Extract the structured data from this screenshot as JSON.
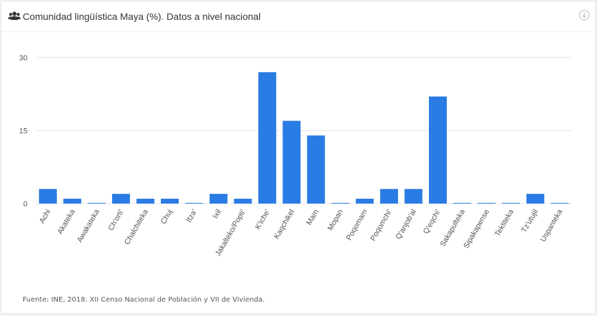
{
  "header": {
    "title": "Comunidad lingüística Maya (%). Datos a nivel nacional",
    "icon": "users-icon",
    "download_icon": "download-icon"
  },
  "footer": {
    "source": "Fuente: INE, 2018. XII Censo Nacional de Población y VII de Vivienda."
  },
  "colors": {
    "bar": "#2a7be4",
    "grid": "#e6e6e6",
    "axis_text": "#555555"
  },
  "chart_data": {
    "type": "bar",
    "title": "Comunidad lingüística Maya (%). Datos a nivel nacional",
    "xlabel": "",
    "ylabel": "",
    "ylim": [
      0,
      30
    ],
    "yticks": [
      0,
      15,
      30
    ],
    "grid": true,
    "categories": [
      "Achi",
      "Akateka",
      "Awakateka",
      "Ch'orti'",
      "Chalchiteka",
      "Chuj",
      "Itza'",
      "Ixil",
      "Jakalteko/Popti'",
      "K'iche'",
      "Kaqchikel",
      "Mam",
      "Mopan",
      "Poqomam",
      "Poqomchi'",
      "Q'anjob'al",
      "Q'eqchi'",
      "Sakapulteka",
      "Sipakapense",
      "Tektiteka",
      "Tz'utujil",
      "Uspanteka"
    ],
    "values": [
      3,
      1,
      0.1,
      2,
      1,
      1,
      0.1,
      2,
      1,
      27,
      17,
      14,
      0.1,
      1,
      3,
      3,
      22,
      0.1,
      0.1,
      0.1,
      2,
      0.1
    ]
  }
}
